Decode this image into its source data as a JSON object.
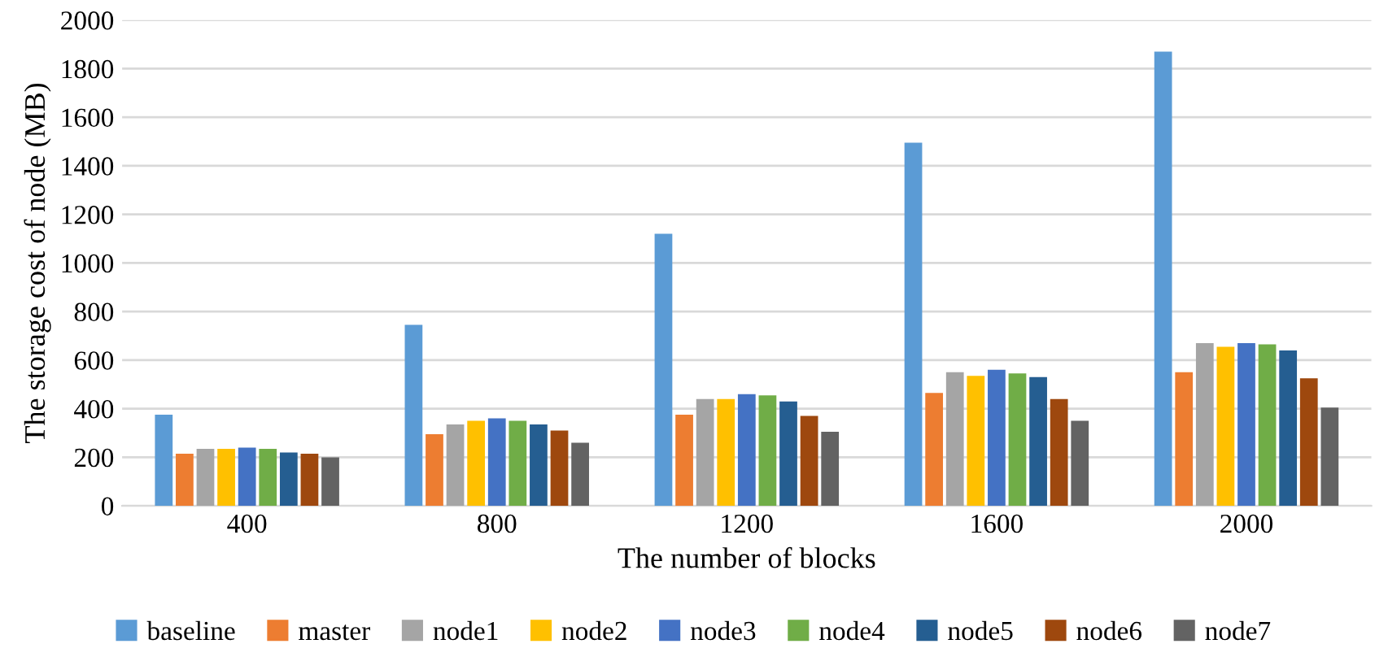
{
  "chart_data": {
    "type": "bar",
    "xlabel": "The number of blocks",
    "ylabel": "The storage cost of node (MB)",
    "categories": [
      "400",
      "800",
      "1200",
      "1600",
      "2000"
    ],
    "series": [
      {
        "name": "baseline",
        "color": "#5b9bd5",
        "values": [
          375,
          745,
          1120,
          1495,
          1870
        ]
      },
      {
        "name": "master",
        "color": "#ed7d31",
        "values": [
          215,
          295,
          375,
          465,
          550
        ]
      },
      {
        "name": "node1",
        "color": "#a5a5a5",
        "values": [
          235,
          335,
          440,
          550,
          670
        ]
      },
      {
        "name": "node2",
        "color": "#ffc000",
        "values": [
          235,
          350,
          440,
          535,
          655
        ]
      },
      {
        "name": "node3",
        "color": "#4472c4",
        "values": [
          240,
          360,
          460,
          560,
          670
        ]
      },
      {
        "name": "node4",
        "color": "#70ad47",
        "values": [
          235,
          350,
          455,
          545,
          665
        ]
      },
      {
        "name": "node5",
        "color": "#255e91",
        "values": [
          220,
          335,
          430,
          530,
          640
        ]
      },
      {
        "name": "node6",
        "color": "#9e480e",
        "values": [
          215,
          310,
          370,
          440,
          525
        ]
      },
      {
        "name": "node7",
        "color": "#636363",
        "values": [
          200,
          260,
          305,
          350,
          405
        ]
      }
    ],
    "ylim": [
      0,
      2000
    ],
    "yticks": [
      0,
      200,
      400,
      600,
      800,
      1000,
      1200,
      1400,
      1600,
      1800,
      2000
    ],
    "grid": "y",
    "legend": "bottom"
  }
}
